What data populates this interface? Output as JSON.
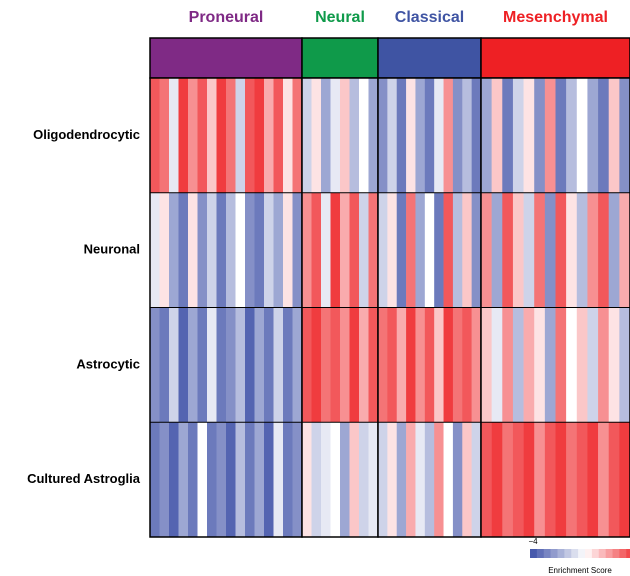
{
  "chart_data": {
    "type": "heatmap",
    "rows": [
      "Oligodendrocytic",
      "Neuronal",
      "Astrocytic",
      "Cultured Astroglia"
    ],
    "groups": [
      {
        "name": "Proneural",
        "color": "#7f2a85",
        "values": [
          [
            3,
            2.5,
            -0.5,
            3.5,
            2,
            3,
            1,
            3.5,
            2.5,
            -1,
            3,
            3.5,
            1.5,
            3,
            0.5,
            2.5
          ],
          [
            -0.5,
            0.5,
            -2,
            -3,
            0.5,
            -2.5,
            -1,
            -3,
            -1.5,
            0,
            -2.5,
            -3,
            -1,
            -2,
            0.5,
            -2.5
          ],
          [
            -2.5,
            -3,
            -1,
            -3.5,
            -2,
            -3,
            -0.5,
            -3,
            -2.5,
            -1.5,
            -3.5,
            -2,
            -3,
            -1,
            -3,
            -2
          ],
          [
            -3,
            -2.5,
            -3.5,
            -2,
            -3,
            0,
            -3,
            -2.5,
            -3.5,
            -1.5,
            -3,
            -2,
            -3.5,
            -0.5,
            -3,
            -2.5
          ]
        ]
      },
      {
        "name": "Neural",
        "color": "#0f9a4a",
        "values": [
          [
            -1,
            0.5,
            -2,
            -0.5,
            1,
            -1.5,
            0,
            -2
          ],
          [
            2,
            3,
            -0.5,
            3.5,
            1.5,
            3,
            -1,
            2.5
          ],
          [
            3,
            3.5,
            2.5,
            3,
            2,
            3.5,
            1.5,
            3
          ],
          [
            0.5,
            -1,
            -0.5,
            0,
            -2,
            1,
            -1,
            -0.5
          ]
        ]
      },
      {
        "name": "Classical",
        "color": "#3f54a3",
        "values": [
          [
            -2.5,
            -1,
            -3,
            0.5,
            -2,
            -3,
            -0.5,
            2,
            -2.5,
            -1.5,
            -3
          ],
          [
            -1,
            0.5,
            -3,
            2.5,
            -2,
            0,
            -3,
            3,
            -1.5,
            1,
            -2.5
          ],
          [
            2.5,
            3,
            1.5,
            3.5,
            2,
            3,
            1,
            3.5,
            2.5,
            3,
            2
          ],
          [
            -1,
            0.5,
            -2,
            1.5,
            -0.5,
            -1.5,
            2,
            0,
            -2.5,
            1,
            -1
          ]
        ]
      },
      {
        "name": "Mesenchymal",
        "color": "#ee2024",
        "values": [
          [
            -2,
            1,
            -3,
            -1,
            0.5,
            -2.5,
            2,
            -3,
            -1.5,
            0,
            -2,
            -3,
            1,
            -2.5
          ],
          [
            2,
            -2,
            3,
            1,
            -1,
            2.5,
            -2.5,
            3,
            0.5,
            -1.5,
            2,
            3,
            -2,
            1.5
          ],
          [
            1,
            -0.5,
            2,
            -1.5,
            1.5,
            0.5,
            -2,
            2.5,
            0,
            1,
            -1,
            2,
            0.5,
            -1.5
          ],
          [
            3,
            3.5,
            2.5,
            3,
            3.5,
            2,
            3,
            3.5,
            2.5,
            3,
            3.5,
            2,
            3,
            3.5
          ]
        ]
      }
    ],
    "zlim": [
      -4,
      4
    ],
    "colorscale": [
      "#3b4ea6",
      "#ffffff",
      "#ee2024"
    ],
    "colorbar_ticks": [
      {
        "value": -4,
        "label": "−4"
      },
      4
    ],
    "colorbar_label": "Enrichment Score"
  }
}
